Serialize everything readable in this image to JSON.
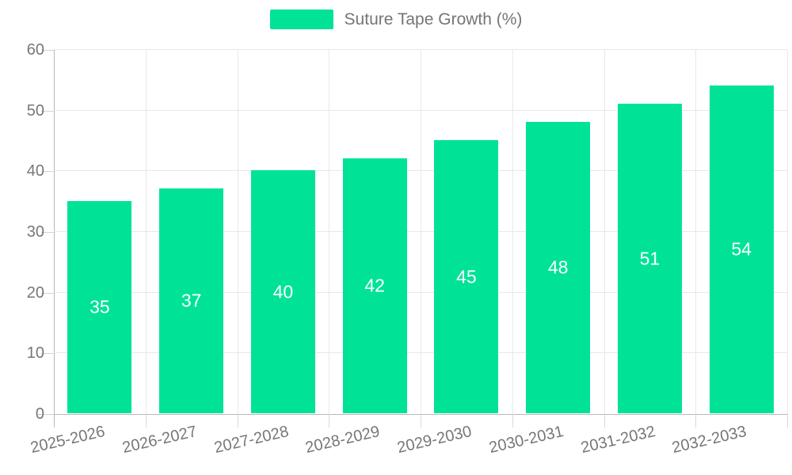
{
  "chart_data": {
    "type": "bar",
    "title": "",
    "xlabel": "",
    "ylabel": "",
    "categories": [
      "2025-2026",
      "2026-2027",
      "2027-2028",
      "2028-2029",
      "2029-2030",
      "2030-2031",
      "2031-2032",
      "2032-2033"
    ],
    "series": [
      {
        "name": "Suture Tape Growth (%)",
        "values": [
          35,
          37,
          40,
          42,
          45,
          48,
          51,
          54
        ],
        "color": "#00E396"
      }
    ],
    "ylim": [
      0,
      60
    ],
    "yticks": [
      0,
      10,
      20,
      30,
      40,
      50,
      60
    ],
    "grid": true,
    "legend_position": "top",
    "value_labels_shown": true,
    "value_label_position": "center"
  },
  "legend": {
    "label": "Suture Tape Growth (%)"
  },
  "colors": {
    "bar": "#00E396",
    "grid": "#e8e8e8",
    "axis_line": "#b9b9b9",
    "tick": "#d9d9d9",
    "axis_text": "#777777",
    "legend_text": "#757575",
    "value_text": "#ffffff",
    "background": "#ffffff"
  }
}
